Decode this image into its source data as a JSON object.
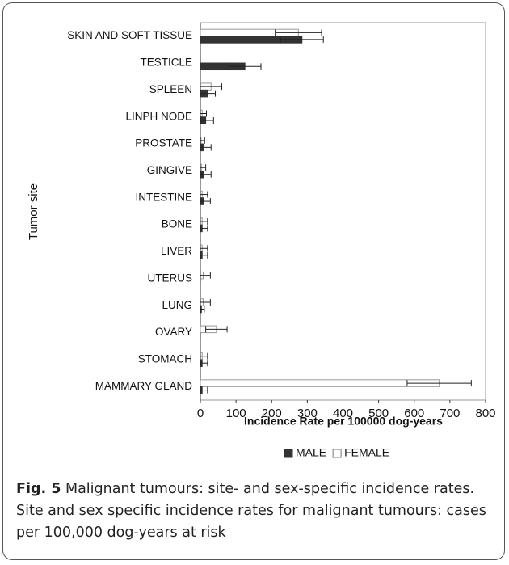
{
  "chart_data": {
    "type": "bar",
    "orientation": "horizontal",
    "ylabel": "Tumor site",
    "xlabel": "Incidence Rate per 100000 dog-years",
    "categories": [
      "SKIN AND SOFT TISSUE",
      "TESTICLE",
      "SPLEEN",
      "LINPH NODE",
      "PROSTATE",
      "GINGIVE",
      "INTESTINE",
      "BONE",
      "LIVER",
      "UTERUS",
      "LUNG",
      "OVARY",
      "STOMACH",
      "MAMMARY GLAND"
    ],
    "series": [
      {
        "name": "MALE",
        "color": "#333333",
        "values": [
          285,
          125,
          20,
          15,
          10,
          10,
          8,
          5,
          5,
          0,
          3,
          0,
          5,
          5
        ],
        "errors": [
          60,
          45,
          22,
          22,
          20,
          20,
          20,
          15,
          15,
          0,
          8,
          0,
          15,
          15
        ]
      },
      {
        "name": "FEMALE",
        "color": "#ffffff",
        "values": [
          275,
          0,
          30,
          5,
          2,
          3,
          5,
          5,
          5,
          8,
          8,
          45,
          5,
          670
        ],
        "errors": [
          65,
          0,
          30,
          12,
          10,
          12,
          15,
          15,
          15,
          20,
          20,
          30,
          15,
          90
        ]
      }
    ],
    "xlim": [
      0,
      800
    ],
    "xticks": [
      0,
      100,
      200,
      300,
      400,
      500,
      600,
      700,
      800
    ],
    "legend": "bottom"
  },
  "caption": {
    "label": "Fig. 5",
    "text": "Malignant tumours: site- and sex-specific incidence rates. Site and sex specific incidence rates for malignant tumours: cases per 100,000 dog-years at risk"
  }
}
